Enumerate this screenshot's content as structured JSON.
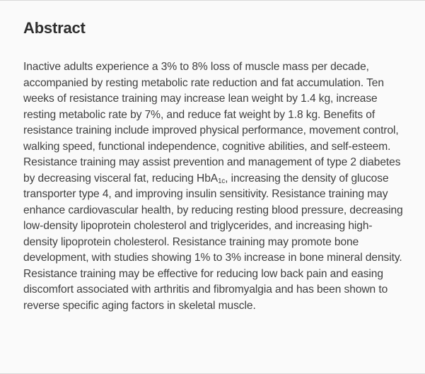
{
  "colors": {
    "background": "#fafafa",
    "heading_color": "#2e2e2e",
    "body_color": "#3e3e3e",
    "edge_border": "#d9d9d9"
  },
  "abstract": {
    "heading": "Abstract",
    "paragraph": {
      "part1": "Inactive adults experience a 3% to 8% loss of muscle mass per decade, accompanied by resting metabolic rate reduction and fat accumulation. Ten weeks of resistance training may increase lean weight by 1.4 kg, increase resting metabolic rate by 7%, and reduce fat weight by 1.8 kg. Benefits of resistance training include improved physical performance, movement control, walking speed, functional independence, cognitive abilities, and self-esteem. Resistance training may assist prevention and management of type 2 diabetes by decreasing visceral fat, reducing HbA",
      "subscript": "1c",
      "part2": ", increasing the density of glucose transporter type 4, and improving insulin sensitivity. Resistance training may enhance cardiovascular health, by reducing resting blood pressure, decreasing low-density lipoprotein cholesterol and triglycerides, and increasing high-density lipoprotein cholesterol. Resistance training may promote bone development, with studies showing 1% to 3% increase in bone mineral density. Resistance training may be effective for reducing low back pain and easing discomfort associated with arthritis and fibromyalgia and has been shown to reverse specific aging factors in skeletal muscle."
    }
  }
}
